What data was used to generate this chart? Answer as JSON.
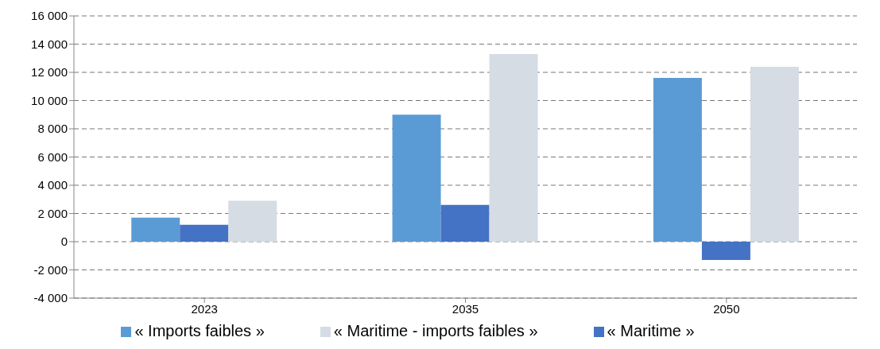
{
  "chart_data": {
    "type": "bar",
    "categories": [
      "2023",
      "2035",
      "2050"
    ],
    "series": [
      {
        "name": "« Imports faibles »",
        "color": "#5b9bd5",
        "values": [
          1700,
          9000,
          11600
        ]
      },
      {
        "name": "« Maritime »",
        "color": "#4472c4",
        "values": [
          1200,
          2600,
          -1300
        ]
      },
      {
        "name": "« Maritime - imports faibles »",
        "color": "#d6dce4",
        "values": [
          2900,
          13300,
          12400
        ]
      }
    ],
    "ylim": [
      -4000,
      16000
    ],
    "yticks": [
      {
        "value": -4000,
        "label": "-4 000"
      },
      {
        "value": -2000,
        "label": "-2 000"
      },
      0,
      {
        "value": 2000,
        "label": "2 000"
      },
      {
        "value": 4000,
        "label": "4 000"
      },
      {
        "value": 6000,
        "label": "6 000"
      },
      {
        "value": 8000,
        "label": "8 000"
      },
      {
        "value": 10000,
        "label": "10 000"
      },
      {
        "value": 12000,
        "label": "12 000"
      },
      {
        "value": 14000,
        "label": "14 000"
      },
      {
        "value": 16000,
        "label": "16 000"
      }
    ],
    "grid": "y",
    "legend": "bottom"
  }
}
